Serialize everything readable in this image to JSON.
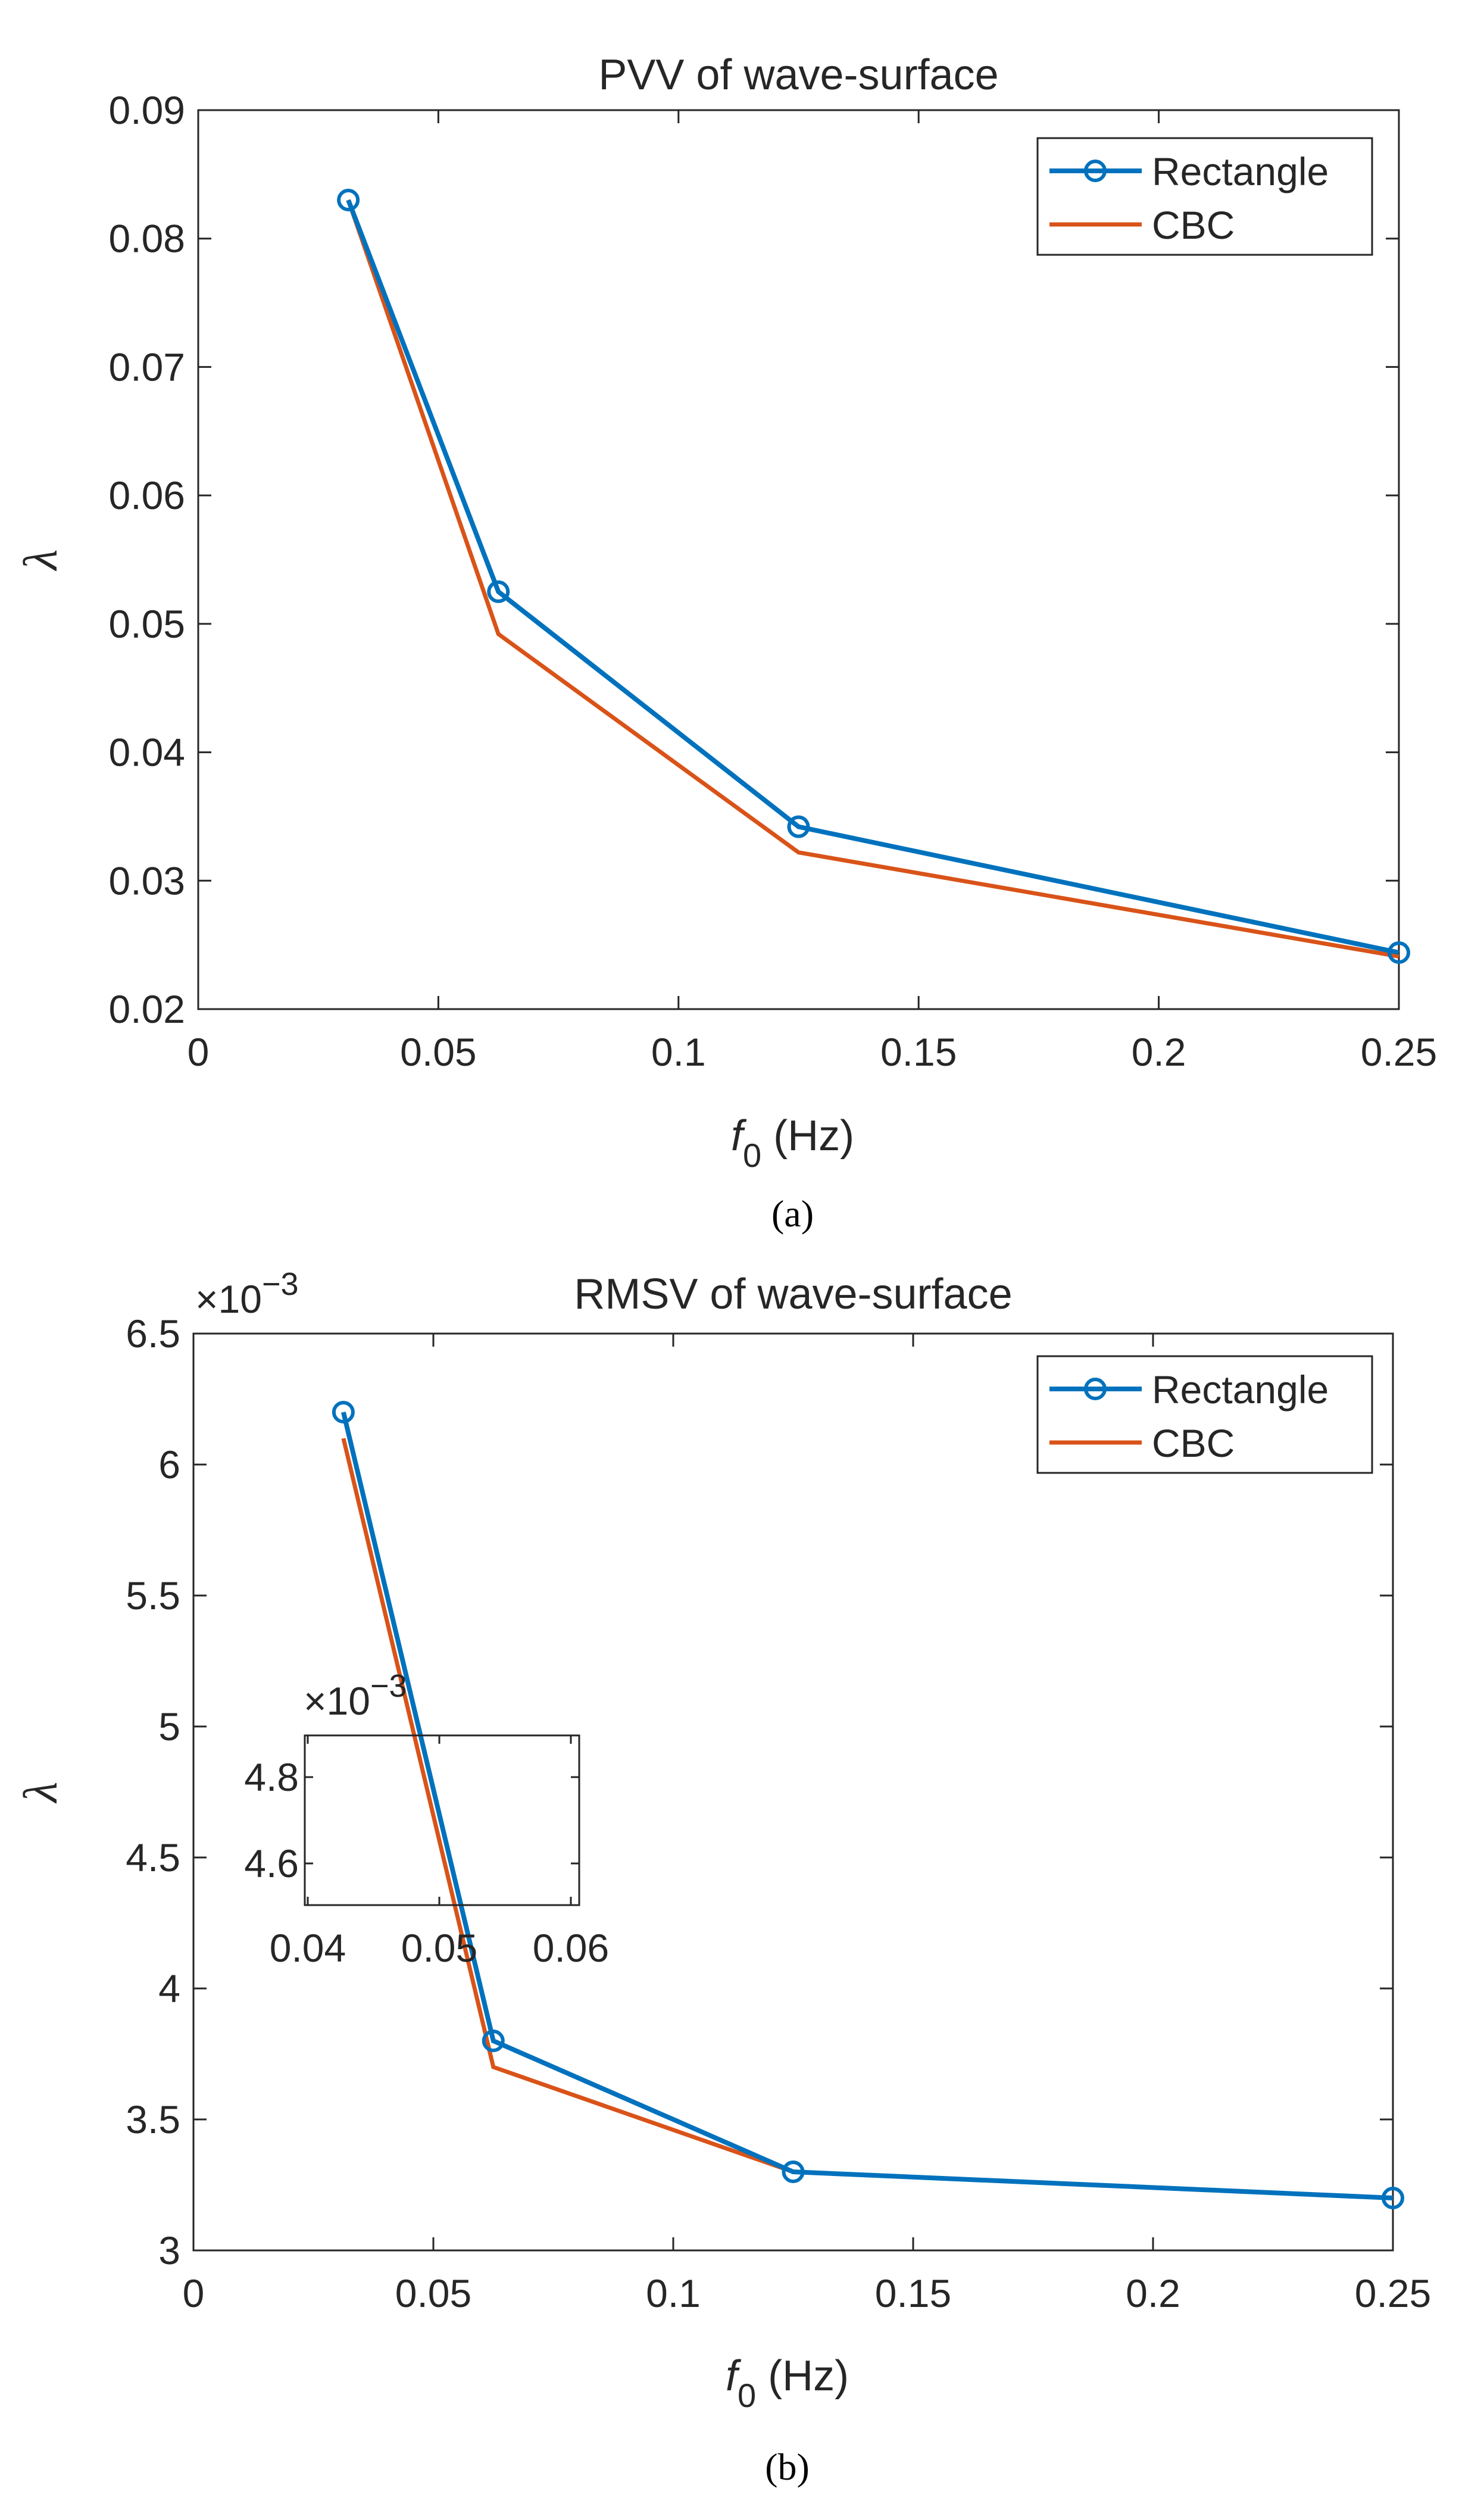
{
  "colors": {
    "series_rectangle": "#0072BD",
    "series_cbc": "#D95319",
    "axis": "#262626",
    "background": "#ffffff"
  },
  "chart_data": [
    {
      "type": "line",
      "panel_label": "(a)",
      "panel_letter": "a",
      "title": "PVV of wave-surface",
      "xlabel": "f",
      "xlabel_sub": "0",
      "xlabel_unit": " (Hz)",
      "ylabel": "λ",
      "xlim": [
        0,
        0.25
      ],
      "ylim": [
        0.02,
        0.09
      ],
      "xticks": [
        0,
        0.05,
        0.1,
        0.15,
        0.2,
        0.25
      ],
      "xtick_labels": [
        "0",
        "0.05",
        "0.1",
        "0.15",
        "0.2",
        "0.25"
      ],
      "yticks": [
        0.02,
        0.03,
        0.04,
        0.05,
        0.06,
        0.07,
        0.08,
        0.09
      ],
      "ytick_labels": [
        "0.02",
        "0.03",
        "0.04",
        "0.05",
        "0.06",
        "0.07",
        "0.08",
        "0.09"
      ],
      "y_exponent_label": "",
      "legend_position": "top-right",
      "x": [
        0.03125,
        0.0625,
        0.125,
        0.25
      ],
      "series": [
        {
          "name": "Rectangle",
          "marker": "circle",
          "values": [
            0.083,
            0.0525,
            0.0342,
            0.0244
          ]
        },
        {
          "name": "CBC",
          "marker": "none",
          "values": [
            0.083,
            0.0492,
            0.0322,
            0.0241
          ]
        }
      ],
      "inset": null
    },
    {
      "type": "line",
      "panel_label": "(b)",
      "panel_letter": "b",
      "title": "RMSV of wave-surface",
      "xlabel": "f",
      "xlabel_sub": "0",
      "xlabel_unit": " (Hz)",
      "ylabel": "λ",
      "xlim": [
        0,
        0.25
      ],
      "ylim": [
        3,
        6.5
      ],
      "xticks": [
        0,
        0.05,
        0.1,
        0.15,
        0.2,
        0.25
      ],
      "xtick_labels": [
        "0",
        "0.05",
        "0.1",
        "0.15",
        "0.2",
        "0.25"
      ],
      "yticks": [
        3,
        3.5,
        4,
        4.5,
        5,
        5.5,
        6,
        6.5
      ],
      "ytick_labels": [
        "3",
        "3.5",
        "4",
        "4.5",
        "5",
        "5.5",
        "6",
        "6.5"
      ],
      "y_exponent_label": "×10",
      "y_exponent_power": "−3",
      "legend_position": "top-right",
      "x": [
        0.03125,
        0.0625,
        0.125,
        0.25
      ],
      "series": [
        {
          "name": "Rectangle",
          "marker": "circle",
          "values": [
            6.2,
            3.8,
            3.3,
            3.2
          ]
        },
        {
          "name": "CBC",
          "marker": "none",
          "values": [
            6.1,
            3.7,
            3.3,
            3.2
          ]
        }
      ],
      "inset": {
        "xticks": [
          0.04,
          0.05,
          0.06
        ],
        "xtick_labels": [
          "0.04",
          "0.05",
          "0.06"
        ],
        "yticks": [
          4.6,
          4.8
        ],
        "ytick_labels": [
          "4.6",
          "4.8"
        ],
        "y_exponent_label": "×10",
        "y_exponent_power": "−3"
      }
    }
  ]
}
